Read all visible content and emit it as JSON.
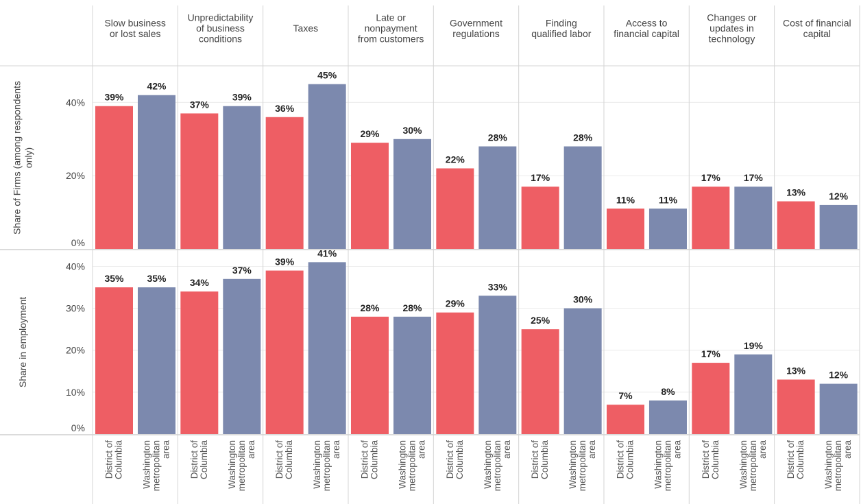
{
  "chart_data": {
    "type": "bar",
    "layout": "small-multiples",
    "title": "",
    "colors": {
      "District of Columbia": "#EE5E64",
      "Washington metropolitan area": "#7C89AE"
    },
    "columns": [
      {
        "label": [
          "Slow business",
          "or lost sales"
        ]
      },
      {
        "label": [
          "Unpredictability",
          "of business",
          "conditions"
        ]
      },
      {
        "label": [
          "Taxes"
        ]
      },
      {
        "label": [
          "Late or",
          "nonpayment",
          "from customers"
        ]
      },
      {
        "label": [
          "Government",
          "regulations"
        ]
      },
      {
        "label": [
          "Finding",
          "qualified labor"
        ]
      },
      {
        "label": [
          "Access to",
          "financial capital"
        ]
      },
      {
        "label": [
          "Changes or",
          "updates in",
          "technology"
        ]
      },
      {
        "label": [
          "Cost of financial",
          "capital"
        ]
      }
    ],
    "x_categories": [
      {
        "name": "District of Columbia",
        "lines": [
          "District of",
          "Columbia"
        ]
      },
      {
        "name": "Washington metropolitan area",
        "lines": [
          "Washington",
          "metropolitan",
          "area"
        ]
      }
    ],
    "panels": [
      {
        "ylabel": [
          "Share of Firms (among respondents",
          "only)"
        ],
        "ylim": [
          0,
          0.5
        ],
        "yticks": [
          0,
          0.2,
          0.4
        ],
        "yticklabels": [
          "0%",
          "20%",
          "40%"
        ],
        "grid": true,
        "series": [
          {
            "values": [
              0.39,
              0.37,
              0.36,
              0.29,
              0.22,
              0.17,
              0.11,
              0.17,
              0.13
            ],
            "labels": [
              "39%",
              "37%",
              "36%",
              "29%",
              "22%",
              "17%",
              "11%",
              "17%",
              "13%"
            ]
          },
          {
            "values": [
              0.42,
              0.39,
              0.45,
              0.3,
              0.28,
              0.28,
              0.11,
              0.17,
              0.12
            ],
            "labels": [
              "42%",
              "39%",
              "45%",
              "30%",
              "28%",
              "28%",
              "11%",
              "17%",
              "12%"
            ]
          }
        ]
      },
      {
        "ylabel": [
          "Share in employment"
        ],
        "ylim": [
          0,
          0.44
        ],
        "yticks": [
          0,
          0.1,
          0.2,
          0.3,
          0.4
        ],
        "yticklabels": [
          "0%",
          "10%",
          "20%",
          "30%",
          "40%"
        ],
        "grid": true,
        "series": [
          {
            "values": [
              0.35,
              0.34,
              0.39,
              0.28,
              0.29,
              0.25,
              0.07,
              0.17,
              0.13
            ],
            "labels": [
              "35%",
              "34%",
              "39%",
              "28%",
              "29%",
              "25%",
              "7%",
              "17%",
              "13%"
            ]
          },
          {
            "values": [
              0.35,
              0.37,
              0.41,
              0.28,
              0.33,
              0.3,
              0.08,
              0.19,
              0.12
            ],
            "labels": [
              "35%",
              "37%",
              "41%",
              "28%",
              "33%",
              "30%",
              "8%",
              "19%",
              "12%"
            ]
          }
        ]
      }
    ]
  }
}
